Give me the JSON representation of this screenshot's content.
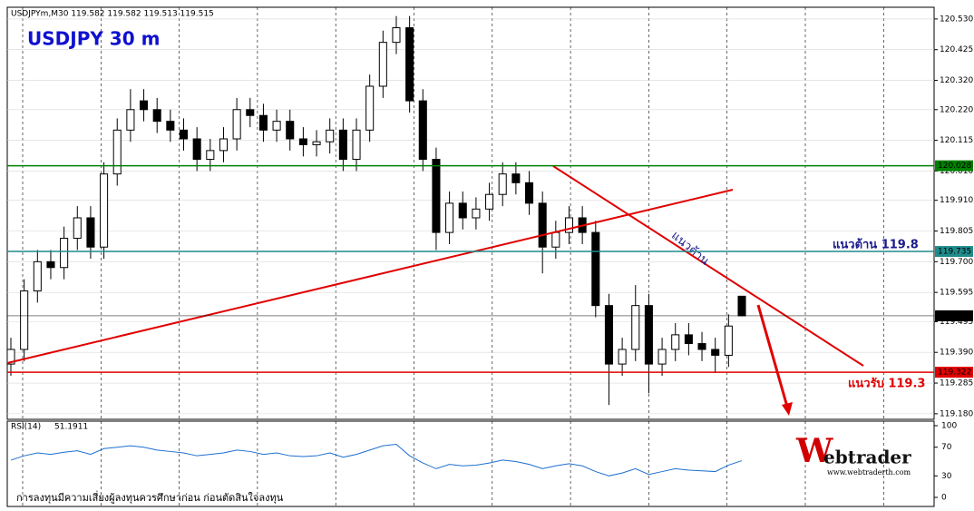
{
  "chart_data": {
    "type": "candlestick",
    "header": "USDJPYm,M30  119.582 119.582 119.513 119.515",
    "title": "USDJPY 30 m",
    "open": [
      119.35,
      119.4,
      119.6,
      119.7,
      119.68,
      119.78,
      119.85,
      119.75,
      120.0,
      120.15,
      120.25,
      120.22,
      120.18,
      120.15,
      120.12,
      120.05,
      120.08,
      120.12,
      120.22,
      120.2,
      120.15,
      120.18,
      120.12,
      120.1,
      120.11,
      120.15,
      120.05,
      120.15,
      120.3,
      120.45,
      120.5,
      120.25,
      120.05,
      119.8,
      119.9,
      119.85,
      119.88,
      119.93,
      120.0,
      119.97,
      119.9,
      119.75,
      119.8,
      119.85,
      119.8,
      119.55,
      119.35,
      119.4,
      119.55,
      119.35,
      119.4,
      119.45,
      119.42,
      119.4,
      119.38,
      119.582
    ],
    "high": [
      119.44,
      119.64,
      119.74,
      119.74,
      119.82,
      119.89,
      119.89,
      120.04,
      120.19,
      120.29,
      120.29,
      120.26,
      120.22,
      120.19,
      120.16,
      120.12,
      120.16,
      120.26,
      120.26,
      120.24,
      120.22,
      120.22,
      120.16,
      120.15,
      120.19,
      120.19,
      120.19,
      120.34,
      120.49,
      120.54,
      120.54,
      120.29,
      120.09,
      119.94,
      119.94,
      119.92,
      119.97,
      120.04,
      120.04,
      120.01,
      119.94,
      119.84,
      119.89,
      119.89,
      119.84,
      119.59,
      119.44,
      119.62,
      119.59,
      119.44,
      119.49,
      119.49,
      119.46,
      119.44,
      119.52,
      119.582
    ],
    "low": [
      119.31,
      119.36,
      119.56,
      119.64,
      119.64,
      119.74,
      119.71,
      119.71,
      119.96,
      120.11,
      120.18,
      120.14,
      120.11,
      120.08,
      120.01,
      120.01,
      120.04,
      120.08,
      120.16,
      120.11,
      120.11,
      120.08,
      120.06,
      120.06,
      120.07,
      120.01,
      120.01,
      120.11,
      120.26,
      120.41,
      120.21,
      120.01,
      119.74,
      119.76,
      119.81,
      119.81,
      119.84,
      119.89,
      119.93,
      119.86,
      119.66,
      119.71,
      119.76,
      119.76,
      119.51,
      119.21,
      119.31,
      119.36,
      119.25,
      119.31,
      119.36,
      119.38,
      119.36,
      119.32,
      119.34,
      119.513
    ],
    "close": [
      119.4,
      119.6,
      119.7,
      119.68,
      119.78,
      119.85,
      119.75,
      120.0,
      120.15,
      120.22,
      120.22,
      120.18,
      120.15,
      120.12,
      120.05,
      120.08,
      120.12,
      120.22,
      120.2,
      120.15,
      120.18,
      120.12,
      120.1,
      120.11,
      120.15,
      120.05,
      120.15,
      120.3,
      120.45,
      120.5,
      120.25,
      120.05,
      119.8,
      119.9,
      119.85,
      119.88,
      119.93,
      120.0,
      119.97,
      119.9,
      119.75,
      119.8,
      119.85,
      119.8,
      119.55,
      119.35,
      119.4,
      119.55,
      119.35,
      119.4,
      119.45,
      119.42,
      119.4,
      119.38,
      119.48,
      119.515
    ],
    "ylim": [
      119.161,
      120.57
    ],
    "yticks": [
      {
        "value": 120.53,
        "label": "120.530"
      },
      {
        "value": 120.425,
        "label": "120.425"
      },
      {
        "value": 120.32,
        "label": "120.320"
      },
      {
        "value": 120.22,
        "label": "120.220"
      },
      {
        "value": 120.115,
        "label": "120.115"
      },
      {
        "value": 120.01,
        "label": "120.010"
      },
      {
        "value": 119.91,
        "label": "119.910"
      },
      {
        "value": 119.805,
        "label": "119.805"
      },
      {
        "value": 119.7,
        "label": "119.700"
      },
      {
        "value": 119.595,
        "label": "119.595"
      },
      {
        "value": 119.495,
        "label": "119.495"
      },
      {
        "value": 119.39,
        "label": "119.390"
      },
      {
        "value": 119.285,
        "label": "119.285"
      },
      {
        "value": 119.18,
        "label": "119.180"
      }
    ],
    "grid": true,
    "levels": [
      {
        "value": 120.028,
        "color": "#008000"
      },
      {
        "value": 119.735,
        "color": "#1f8c8c"
      },
      {
        "value": 119.322,
        "color": "#e00000"
      },
      {
        "value": 119.515,
        "color": "#000000"
      }
    ],
    "annotations": [
      {
        "text": "แนวต้าน 119.8",
        "color": "#1a1a8c"
      },
      {
        "text": "แนวรับ 119.3",
        "color": "#e00000"
      },
      {
        "text": "แนวต้าน",
        "color": "#1a1a8c"
      }
    ],
    "rsi": {
      "name": "RSI(14)",
      "color": "#1e6fd0",
      "ylim": [
        0,
        100
      ],
      "yticks": [
        100,
        70,
        30,
        0
      ],
      "values": [
        52,
        58,
        62,
        60,
        63,
        65,
        60,
        68,
        70,
        72,
        70,
        66,
        64,
        62,
        58,
        60,
        62,
        66,
        64,
        60,
        62,
        58,
        57,
        58,
        62,
        56,
        60,
        66,
        72,
        74,
        58,
        48,
        40,
        46,
        44,
        45,
        48,
        52,
        50,
        46,
        40,
        44,
        47,
        44,
        36,
        30,
        34,
        40,
        32,
        36,
        40,
        38,
        37,
        36,
        45,
        51.1911
      ]
    }
  },
  "footer": "การลงทุนมีความเสี่ยงผู้ลงทุนควรศึกษาก่อน ก่อนตัดสินใจลงทุน",
  "logo": {
    "initial": "W",
    "rest": "ebtrader",
    "url": "www.webtraderth.com"
  }
}
